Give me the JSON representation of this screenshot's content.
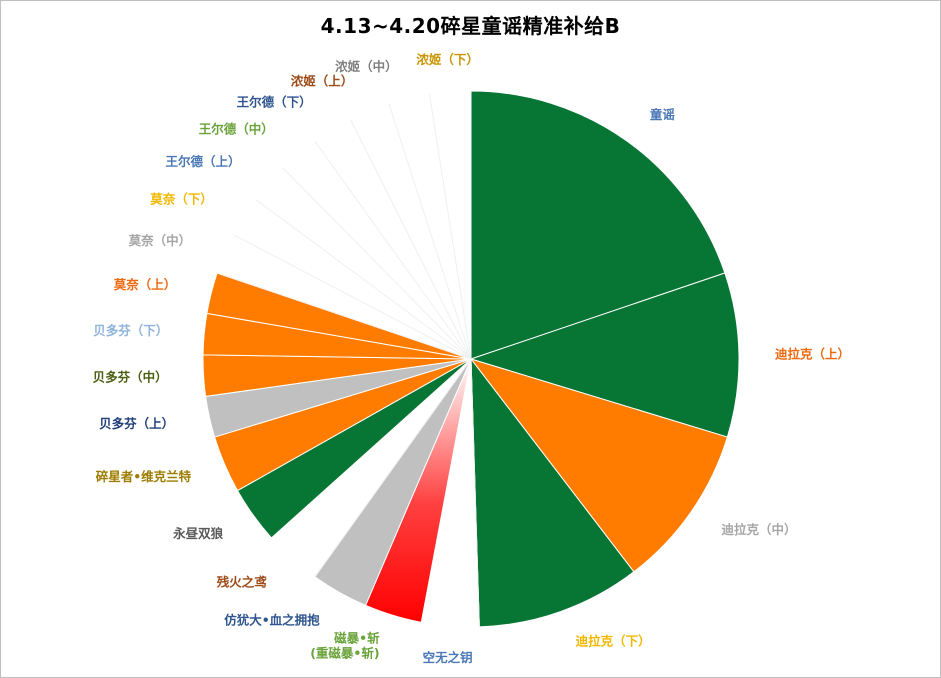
{
  "chart_data": {
    "type": "pie",
    "title": "4.13~4.20碎星童谣精准补给B",
    "legend": "none",
    "start_angle_deg": 0,
    "direction": "clockwise",
    "slices": [
      {
        "label": "童谣",
        "value": 20.0,
        "fill": "#077534",
        "label_color": "#4a78b6"
      },
      {
        "label": "迪拉克（上）",
        "value": 10.0,
        "fill": "#077534",
        "label_color": "#ee6a10"
      },
      {
        "label": "迪拉克（中）",
        "value": 10.0,
        "fill": "#ff7c00",
        "label_color": "#a6a6a6"
      },
      {
        "label": "迪拉克（下）",
        "value": 10.0,
        "fill": "#077534",
        "label_color": "#f2b800"
      },
      {
        "label": "空无之钥",
        "value": 3.5,
        "fill": "#ffffff",
        "label_color": "#4a78b6"
      },
      {
        "label": "磁暴•斩\n(重磁暴•斩)",
        "value": 3.5,
        "fill": "gradient-red",
        "label_color": "#6aa33a"
      },
      {
        "label": "仿犹大•血之拥抱",
        "value": 3.5,
        "fill": "#c0c0c0",
        "label_color": "#2f5590"
      },
      {
        "label": "残火之鸢",
        "value": 3.5,
        "fill": "#ffffff",
        "label_color": "#9c4a16"
      },
      {
        "label": "永昼双狼",
        "value": 3.5,
        "fill": "#077534",
        "label_color": "#595959"
      },
      {
        "label": "碎星者•维克兰特",
        "value": 3.5,
        "fill": "#ff7c00",
        "label_color": "#9c7d00"
      },
      {
        "label": "贝多芬（上）",
        "value": 2.5,
        "fill": "#c0c0c0",
        "label_color": "#213f78"
      },
      {
        "label": "贝多芬（中）",
        "value": 2.5,
        "fill": "#ff7c00",
        "label_color": "#4c5e12"
      },
      {
        "label": "贝多芬（下）",
        "value": 2.5,
        "fill": "#ff7c00",
        "label_color": "#8fb4dc"
      },
      {
        "label": "莫奈（上）",
        "value": 2.5,
        "fill": "#ff7c00",
        "label_color": "#ee6a10"
      },
      {
        "label": "莫奈（中）",
        "value": 2.5,
        "fill": "#ffffff",
        "label_color": "#a6a6a6"
      },
      {
        "label": "莫奈（下）",
        "value": 2.5,
        "fill": "#ffffff",
        "label_color": "#f2b800"
      },
      {
        "label": "王尔德（上）",
        "value": 2.5,
        "fill": "#ffffff",
        "label_color": "#4a78b6"
      },
      {
        "label": "王尔德（中）",
        "value": 2.5,
        "fill": "#ffffff",
        "label_color": "#6aa33a"
      },
      {
        "label": "王尔德（下）",
        "value": 2.5,
        "fill": "#ffffff",
        "label_color": "#2f5590"
      },
      {
        "label": "浓姬（上）",
        "value": 2.5,
        "fill": "#ffffff",
        "label_color": "#9c4a16"
      },
      {
        "label": "浓姬（中）",
        "value": 2.5,
        "fill": "#ffffff",
        "label_color": "#808080"
      },
      {
        "label": "浓姬（下）",
        "value": 2.5,
        "fill": "#ffffff",
        "label_color": "#c89400"
      }
    ]
  }
}
